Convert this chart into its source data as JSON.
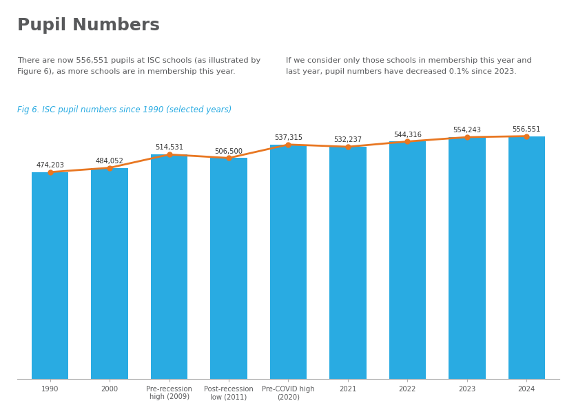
{
  "title": "Pupil Numbers",
  "fig_label": "Fig 6. ISC pupil numbers since 1990 (selected years)",
  "text_left": "There are now 556,551 pupils at ISC schools (as illustrated by\nFigure 6), as more schools are in membership this year.",
  "text_right": "If we consider only those schools in membership this year and\nlast year, pupil numbers have decreased 0.1% since 2023.",
  "categories": [
    "1990",
    "2000",
    "Pre-recession\nhigh (2009)",
    "Post-recession\nlow (2011)",
    "Pre-COVID high\n(2020)",
    "2021",
    "2022",
    "2023",
    "2024"
  ],
  "values": [
    474203,
    484052,
    514531,
    506500,
    537315,
    532237,
    544316,
    554243,
    556551
  ],
  "bar_color": "#29ABE2",
  "line_color": "#E87722",
  "background_color": "#FFFFFF",
  "title_color": "#58595B",
  "fig_label_color": "#29ABE2",
  "text_color": "#58595B",
  "value_labels": [
    "474,203",
    "484,052",
    "514,531",
    "506,500",
    "537,315",
    "532,237",
    "544,316",
    "554,243",
    "556,551"
  ],
  "ylim": [
    0,
    590000
  ],
  "bar_width": 0.62
}
